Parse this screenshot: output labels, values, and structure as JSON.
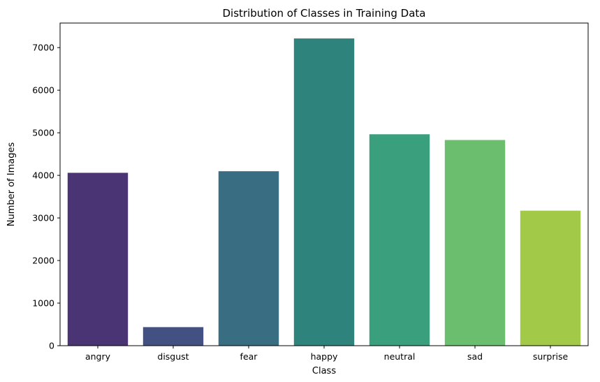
{
  "chart_data": {
    "type": "bar",
    "title": "Distribution of Classes in Training Data",
    "xlabel": "Class",
    "ylabel": "Number of Images",
    "categories": [
      "angry",
      "disgust",
      "fear",
      "happy",
      "neutral",
      "sad",
      "surprise"
    ],
    "values": [
      4060,
      436,
      4097,
      7215,
      4965,
      4830,
      3171
    ],
    "colors": [
      "#4a3473",
      "#435182",
      "#386d82",
      "#2e847c",
      "#3a9f7c",
      "#6bbe6d",
      "#a2c947"
    ],
    "ylim": [
      0,
      7577
    ],
    "yticks": [
      0,
      1000,
      2000,
      3000,
      4000,
      5000,
      6000,
      7000
    ],
    "grid": false,
    "legend": "none"
  }
}
